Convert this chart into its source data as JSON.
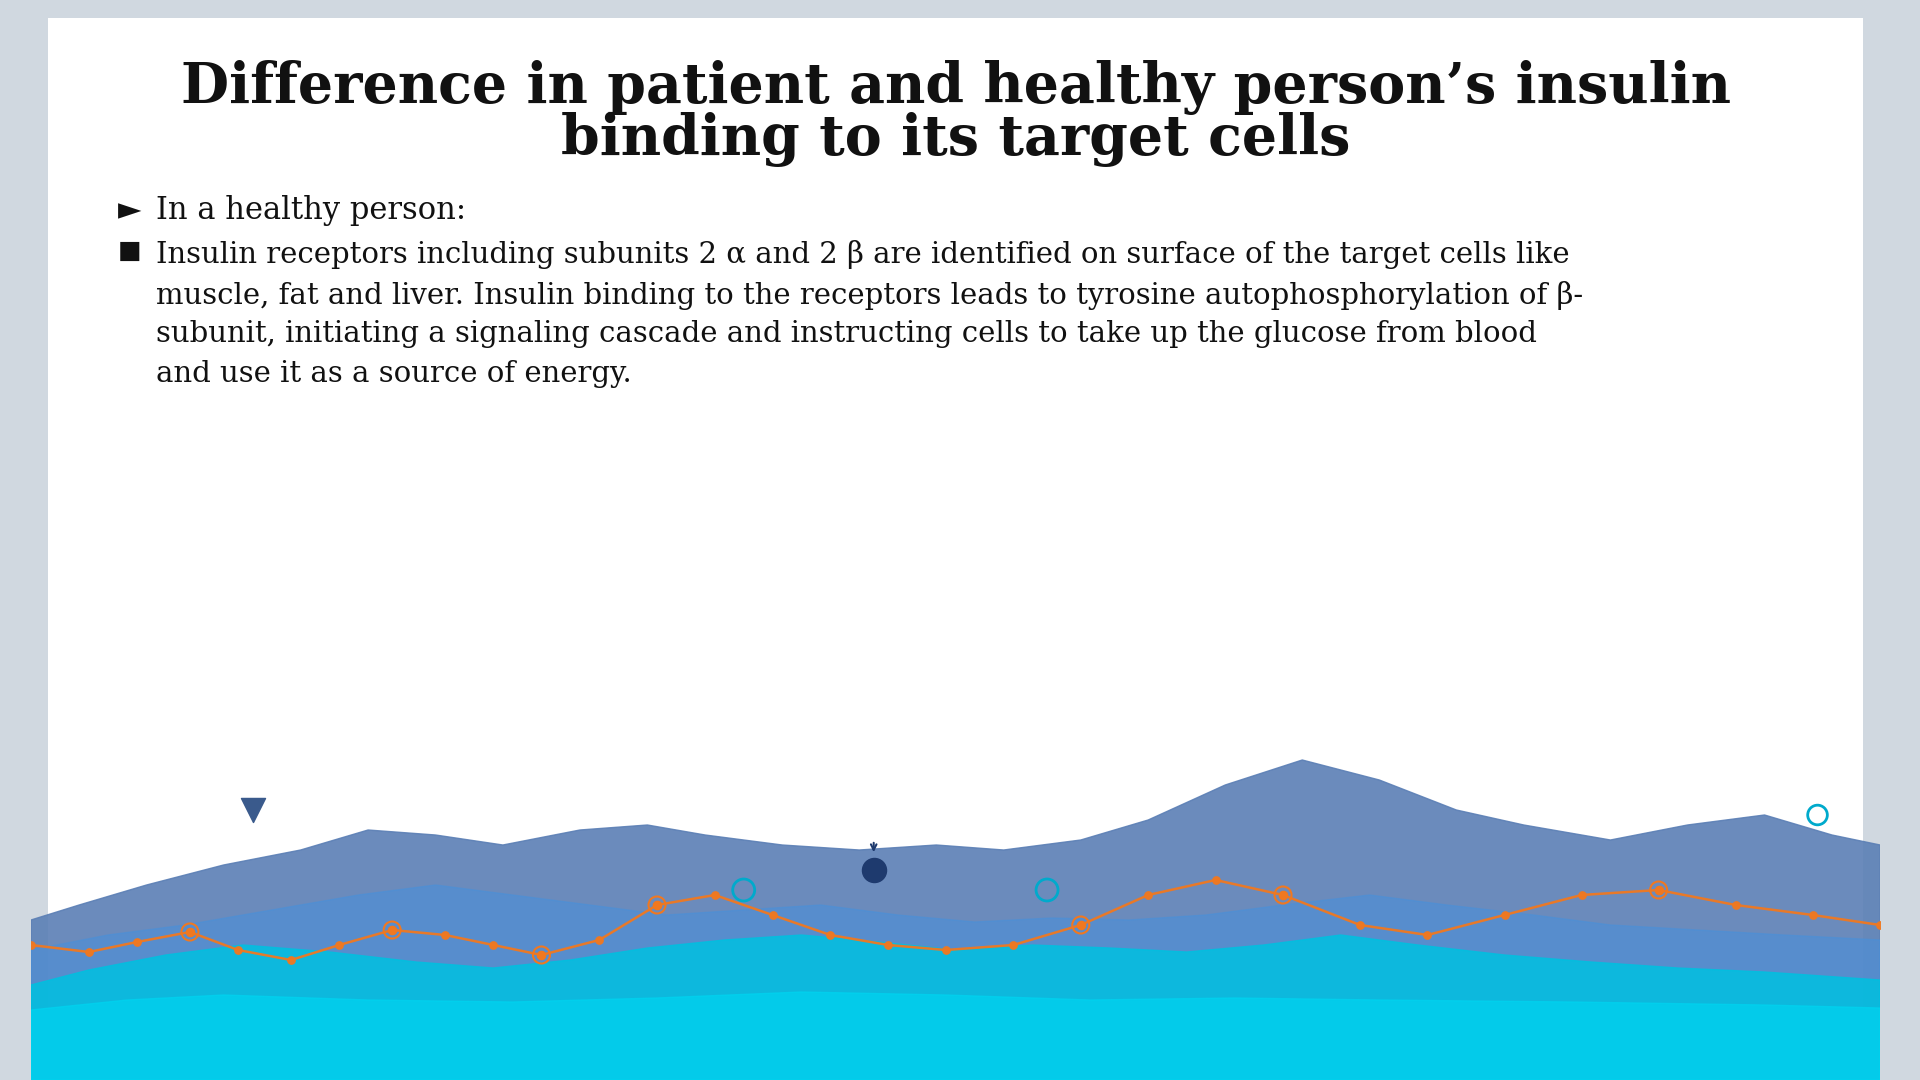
{
  "title_line1": "Difference in patient and healthy person’s insulin",
  "title_line2": "binding to its target cells",
  "title_fontsize": 40,
  "title_fontweight": "bold",
  "title_color": "#111111",
  "outer_bg": "#d0d8e0",
  "slide_bg": "#ffffff",
  "bullet1_symbol": "►",
  "bullet1_text": "In a healthy person:",
  "bullet1_fontsize": 22,
  "bullet2_symbol": "■",
  "bullet2_text": "Insulin receptors including subunits 2 α and 2 β are identified on surface of the target cells like\nmuscle, fat and liver. Insulin binding to the receptors leads to tyrosine autophosphorylation of β-\nsubunit, initiating a signaling cascade and instructing cells to take up the glucose from blood\nand use it as a source of energy.",
  "bullet2_fontsize": 21,
  "text_color": "#111111",
  "area_dark_blue": "#5b7fb5",
  "area_mid_blue": "#4a90d9",
  "area_cyan": "#00c0e0",
  "area_light_cyan": "#00d4f0",
  "orange_color": "#f07820",
  "dark_blue_marker": "#1e3a6e",
  "cyan_marker": "#00aacc"
}
